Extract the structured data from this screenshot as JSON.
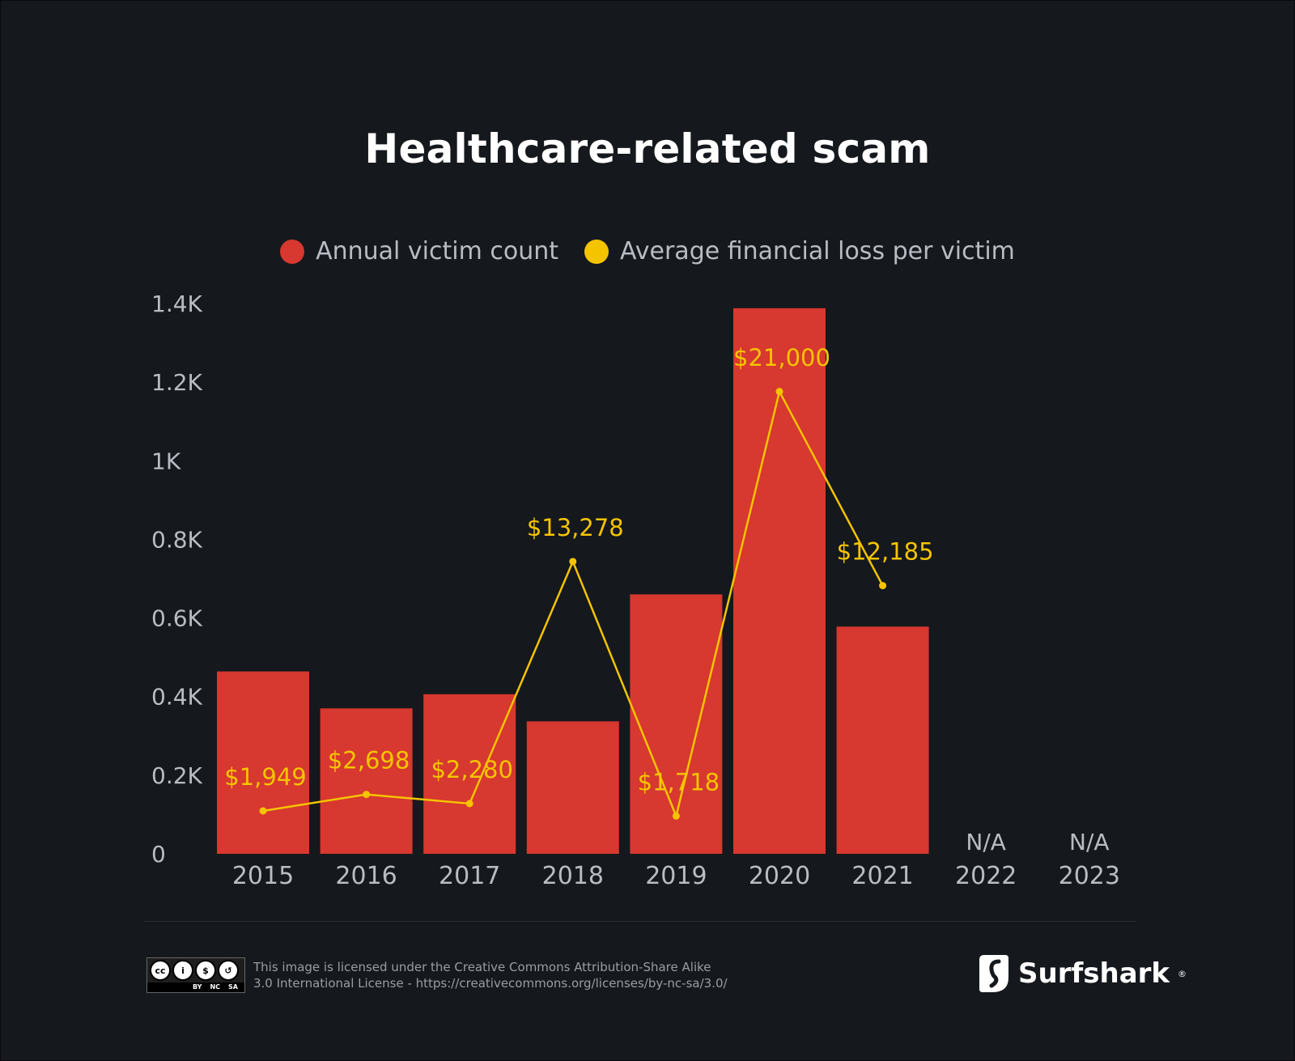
{
  "title": "Healthcare-related scam",
  "legend": [
    {
      "label": "Annual victim count",
      "color": "#d7382f"
    },
    {
      "label": "Average financial loss per victim",
      "color": "#f5c400"
    }
  ],
  "chart_data": {
    "type": "bar",
    "title": "Healthcare-related scam",
    "categories": [
      "2015",
      "2016",
      "2017",
      "2018",
      "2019",
      "2020",
      "2021",
      "2022",
      "2023"
    ],
    "y_ticks": [
      "0",
      "0.2K",
      "0.4K",
      "0.6K",
      "0.8K",
      "1K",
      "1.2K",
      "1.4K"
    ],
    "ylim": [
      0,
      1400
    ],
    "grid": false,
    "legend_position": "top-center",
    "series": [
      {
        "name": "Annual victim count",
        "type": "bar",
        "color": "#d7382f",
        "values": [
          464,
          370,
          406,
          337,
          660,
          1388,
          578,
          null,
          null
        ],
        "missing_label": "N/A"
      },
      {
        "name": "Average financial loss per victim",
        "type": "line",
        "color": "#f5c400",
        "values": [
          1949,
          2698,
          2280,
          13278,
          1718,
          21000,
          12185,
          null,
          null
        ],
        "data_labels": [
          "$1,949",
          "$2,698",
          "$2,280",
          "$13,278",
          "$1,718",
          "$21,000",
          "$12,185",
          "",
          ""
        ],
        "ylim": [
          0,
          25000
        ]
      }
    ]
  },
  "footer": {
    "license_line1": "This image is licensed under the Creative Commons Attribution-Share Alike",
    "license_line2": "3.0 International License - https://creativecommons.org/licenses/by-nc-sa/3.0/",
    "cc_badge": {
      "cc": "cc",
      "by": "BY",
      "nc": "NC",
      "sa": "SA"
    },
    "brand": "Surfshark",
    "brand_mark": "®"
  }
}
